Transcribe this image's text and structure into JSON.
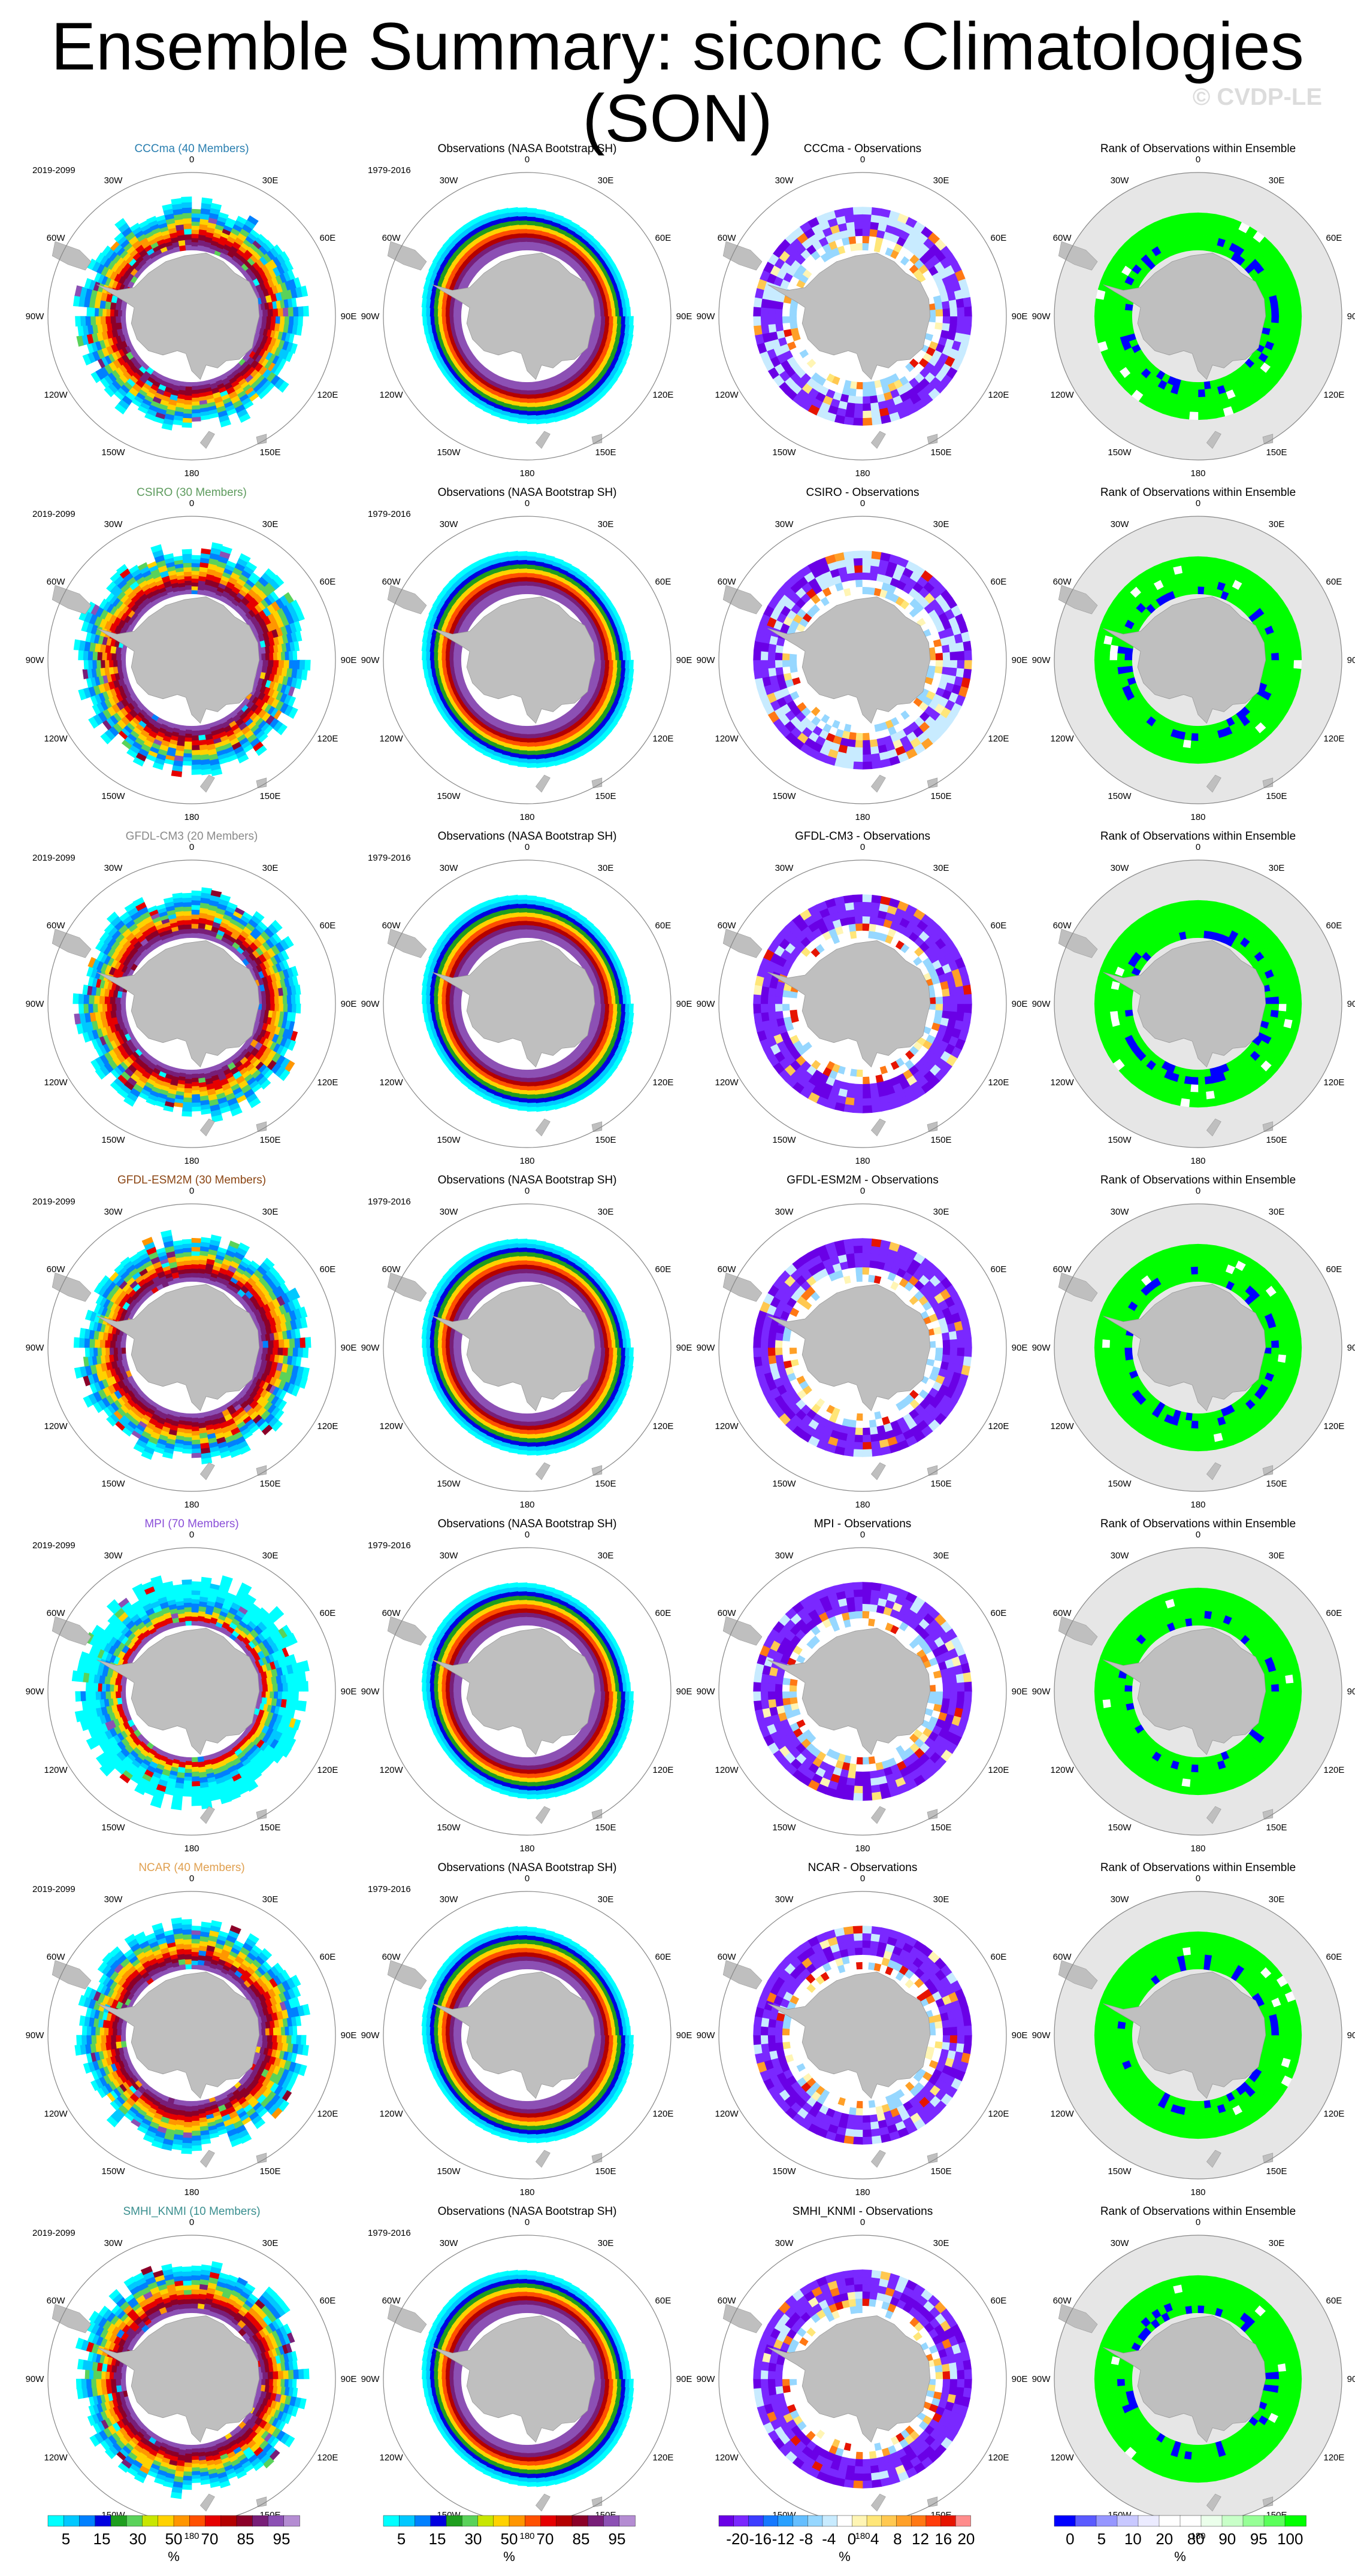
{
  "title": "Ensemble Summary: siconc Climatologies (SON)",
  "watermark": "© CVDP-LE",
  "longitude_labels": [
    "0",
    "30E",
    "60E",
    "90E",
    "120E",
    "150E",
    "180",
    "150W",
    "120W",
    "90W",
    "60W",
    "30W"
  ],
  "columns": [
    "model-mean",
    "observations",
    "difference",
    "rank"
  ],
  "rows": [
    {
      "model": "CCCma",
      "model_title": "CCCma (40 Members)",
      "model_color": "#2a7fb0",
      "model_period": "2019-2099",
      "obs_title": "Observations (NASA Bootstrap SH)",
      "obs_period": "1979-2016",
      "diff_title": "CCCma - Observations",
      "rank_title": "Rank of Observations within Ensemble"
    },
    {
      "model": "CSIRO",
      "model_title": "CSIRO (30 Members)",
      "model_color": "#5e9b5e",
      "model_period": "2019-2099",
      "obs_title": "Observations (NASA Bootstrap SH)",
      "obs_period": "1979-2016",
      "diff_title": "CSIRO - Observations",
      "rank_title": "Rank of Observations within Ensemble"
    },
    {
      "model": "GFDL-CM3",
      "model_title": "GFDL-CM3 (20 Members)",
      "model_color": "#8a8a8a",
      "model_period": "2019-2099",
      "obs_title": "Observations (NASA Bootstrap SH)",
      "obs_period": "1979-2016",
      "diff_title": "GFDL-CM3 - Observations",
      "rank_title": "Rank of Observations within Ensemble"
    },
    {
      "model": "GFDL-ESM2M",
      "model_title": "GFDL-ESM2M (30 Members)",
      "model_color": "#8b4513",
      "model_period": "2019-2099",
      "obs_title": "Observations (NASA Bootstrap SH)",
      "obs_period": "1979-2016",
      "diff_title": "GFDL-ESM2M - Observations",
      "rank_title": "Rank of Observations within Ensemble"
    },
    {
      "model": "MPI",
      "model_title": "MPI (70 Members)",
      "model_color": "#8a4fd8",
      "model_period": "2019-2099",
      "obs_title": "Observations (NASA Bootstrap SH)",
      "obs_period": "1979-2016",
      "diff_title": "MPI - Observations",
      "rank_title": "Rank of Observations within Ensemble"
    },
    {
      "model": "NCAR",
      "model_title": "NCAR (40 Members)",
      "model_color": "#e0a050",
      "model_period": "2019-2099",
      "obs_title": "Observations (NASA Bootstrap SH)",
      "obs_period": "1979-2016",
      "diff_title": "NCAR - Observations",
      "rank_title": "Rank of Observations within Ensemble"
    },
    {
      "model": "SMHI_KNMI",
      "model_title": "SMHI_KNMI (10 Members)",
      "model_color": "#3a8f8f",
      "model_period": "2019-2099",
      "obs_title": "Observations (NASA Bootstrap SH)",
      "obs_period": "1979-2016",
      "diff_title": "SMHI_KNMI - Observations",
      "rank_title": "Rank of Observations within Ensemble"
    }
  ],
  "colorbars": [
    {
      "name": "siconc",
      "unit": "%",
      "colors": [
        "#00ffff",
        "#00c8ff",
        "#0080ff",
        "#0000e0",
        "#1e9e1e",
        "#5ad25a",
        "#c8e600",
        "#ffd200",
        "#ff9600",
        "#ff5000",
        "#e60000",
        "#b40000",
        "#8c0028",
        "#781e78",
        "#8c50b4",
        "#b48cd2"
      ],
      "tick_labels": [
        "5",
        "15",
        "30",
        "50",
        "70",
        "85",
        "95"
      ]
    },
    {
      "name": "siconc",
      "unit": "%",
      "colors": [
        "#00ffff",
        "#00c8ff",
        "#0080ff",
        "#0000e0",
        "#1e9e1e",
        "#5ad25a",
        "#c8e600",
        "#ffd200",
        "#ff9600",
        "#ff5000",
        "#e60000",
        "#b40000",
        "#8c0028",
        "#781e78",
        "#8c50b4",
        "#b48cd2"
      ],
      "tick_labels": [
        "5",
        "15",
        "30",
        "50",
        "70",
        "85",
        "95"
      ]
    },
    {
      "name": "difference",
      "unit": "%",
      "colors": [
        "#6a00e6",
        "#7a28ff",
        "#3c3cff",
        "#1478ff",
        "#28a0ff",
        "#64beff",
        "#96d7ff",
        "#c8ebff",
        "#ffffff",
        "#fff5b4",
        "#ffe678",
        "#ffc850",
        "#ffa028",
        "#ff7814",
        "#ff3c0a",
        "#e61400",
        "#ff8c8c"
      ],
      "tick_labels": [
        "-20",
        "-16",
        "-12",
        "-8",
        "-4",
        "0",
        "4",
        "8",
        "12",
        "16",
        "20"
      ]
    },
    {
      "name": "rank",
      "unit": "%",
      "colors": [
        "#0000ff",
        "#5a5aff",
        "#9696ff",
        "#c8c8ff",
        "#ebebff",
        "#ffffff",
        "#ffffff",
        "#ebffeb",
        "#c8ffc8",
        "#96ff96",
        "#5aff5a",
        "#00ff00"
      ],
      "tick_labels": [
        "0",
        "5",
        "10",
        "20",
        "80",
        "90",
        "95",
        "100"
      ]
    }
  ]
}
